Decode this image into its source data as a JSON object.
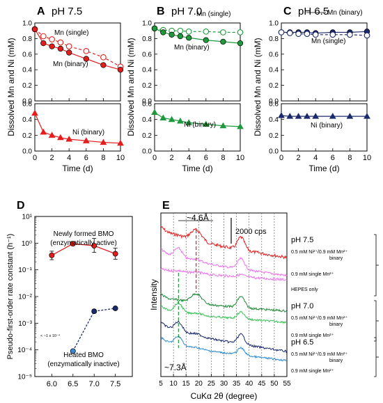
{
  "chart_data": [
    {
      "panel": "A",
      "type": "line",
      "title": "pH 7.5",
      "xlabel": "Time (d)",
      "ylabel": "Dissolved Mn and Ni (mM)",
      "xlim": [
        0,
        10
      ],
      "xticks": [
        "0",
        "2",
        "4",
        "6",
        "8",
        "10"
      ],
      "top": {
        "ylim": [
          0,
          1.0
        ],
        "yticks": [
          "0.0",
          "0.2",
          "0.4",
          "0.6",
          "0.8",
          "1.0"
        ],
        "series": [
          {
            "name": "Mn (single)",
            "marker": "circle-open",
            "line": "dashed",
            "color": "#e41e1e",
            "x": [
              0,
              1,
              2,
              3,
              4,
              6,
              8,
              10
            ],
            "y": [
              0.92,
              0.83,
              0.79,
              0.75,
              0.7,
              0.64,
              0.56,
              0.44
            ]
          },
          {
            "name": "Mn (binary)",
            "marker": "circle-filled",
            "line": "solid",
            "color": "#e41e1e",
            "x": [
              0,
              1,
              2,
              3,
              4,
              6,
              8,
              10
            ],
            "y": [
              0.92,
              0.74,
              0.7,
              0.67,
              0.62,
              0.54,
              0.46,
              0.4
            ]
          }
        ]
      },
      "bottom": {
        "ylim": [
          0,
          0.6
        ],
        "yticks": [
          "0.0",
          "0.2",
          "0.4",
          "0.6"
        ],
        "series": [
          {
            "name": "Ni (binary)",
            "marker": "triangle-filled",
            "line": "solid",
            "color": "#e41e1e",
            "x": [
              0,
              1,
              2,
              3,
              4,
              6,
              8,
              10
            ],
            "y": [
              0.48,
              0.24,
              0.2,
              0.17,
              0.15,
              0.13,
              0.11,
              0.1
            ]
          }
        ]
      }
    },
    {
      "panel": "B",
      "type": "line",
      "title": "pH 7.0",
      "xlabel": "Time (d)",
      "ylabel": "Dissolved Mn and Ni (mM)",
      "xlim": [
        0,
        10
      ],
      "xticks": [
        "0",
        "2",
        "4",
        "6",
        "8",
        "10"
      ],
      "top": {
        "ylim": [
          0,
          1.0
        ],
        "yticks": [
          "0.0",
          "0.2",
          "0.4",
          "0.6",
          "0.8",
          "1.0"
        ],
        "series": [
          {
            "name": "Mn (single)",
            "marker": "circle-open",
            "line": "dashed",
            "color": "#1e9a3c",
            "x": [
              0,
              1,
              2,
              3,
              4,
              6,
              8,
              10
            ],
            "y": [
              0.93,
              0.91,
              0.9,
              0.9,
              0.89,
              0.89,
              0.88,
              0.88
            ]
          },
          {
            "name": "Mn (binary)",
            "marker": "circle-filled",
            "line": "solid",
            "color": "#1e9a3c",
            "x": [
              0,
              1,
              2,
              3,
              4,
              6,
              8,
              10
            ],
            "y": [
              0.93,
              0.88,
              0.85,
              0.83,
              0.81,
              0.78,
              0.76,
              0.74
            ]
          }
        ]
      },
      "bottom": {
        "ylim": [
          0,
          0.6
        ],
        "yticks": [
          "0.0",
          "0.2",
          "0.4",
          "0.6"
        ],
        "series": [
          {
            "name": "Ni (binary)",
            "marker": "triangle-filled",
            "line": "solid",
            "color": "#1e9a3c",
            "x": [
              0,
              1,
              2,
              3,
              4,
              6,
              8,
              10
            ],
            "y": [
              0.49,
              0.42,
              0.4,
              0.38,
              0.36,
              0.34,
              0.32,
              0.31
            ]
          }
        ]
      }
    },
    {
      "panel": "C",
      "type": "line",
      "title": "pH 6.5",
      "xlabel": "Time (d)",
      "ylabel": "Dissolved Mn and Ni (mM)",
      "xlim": [
        0,
        10
      ],
      "xticks": [
        "0",
        "2",
        "4",
        "6",
        "8",
        "10"
      ],
      "top": {
        "ylim": [
          0,
          1.0
        ],
        "yticks": [
          "0.0",
          "0.2",
          "0.4",
          "0.6",
          "0.8",
          "1.0"
        ],
        "series": [
          {
            "name": "Mn (binary)",
            "marker": "circle-filled",
            "line": "solid",
            "color": "#1b2a6b",
            "x": [
              0,
              1,
              2,
              3,
              4,
              6,
              8,
              10
            ],
            "y": [
              0.88,
              0.88,
              0.88,
              0.88,
              0.87,
              0.88,
              0.88,
              0.89
            ]
          },
          {
            "name": "Mn (single)",
            "marker": "circle-open",
            "line": "dashed",
            "color": "#1b2a6b",
            "x": [
              0,
              1,
              2,
              3,
              4,
              6,
              8,
              10
            ],
            "y": [
              0.88,
              0.87,
              0.86,
              0.86,
              0.85,
              0.85,
              0.85,
              0.84
            ]
          }
        ]
      },
      "bottom": {
        "ylim": [
          0,
          0.6
        ],
        "yticks": [
          "0.0",
          "0.2",
          "0.4",
          "0.6"
        ],
        "series": [
          {
            "name": "Ni (binary)",
            "marker": "triangle-filled",
            "line": "solid",
            "color": "#1b2a6b",
            "x": [
              0,
              1,
              2,
              3,
              4,
              6,
              8,
              10
            ],
            "y": [
              0.45,
              0.44,
              0.44,
              0.44,
              0.44,
              0.44,
              0.44,
              0.44
            ]
          }
        ]
      }
    },
    {
      "panel": "D",
      "type": "line",
      "ylabel": "Pseudo-first-order rate constant (h⁻¹)",
      "yscale": "log",
      "ylim": [
        1e-05,
        10
      ],
      "yticks": [
        "10⁻⁵",
        "10⁻⁴",
        "10⁻³",
        "10⁻²",
        "10⁻¹",
        "10⁰",
        "10¹"
      ],
      "xlim": [
        5.6,
        7.9
      ],
      "xticks": [
        "6.0",
        "6.5",
        "7.0",
        "7.5"
      ],
      "annotation": "< ~1 x 10⁻⁴",
      "series": [
        {
          "name": "Newly formed BMO",
          "sublabel": "(enzymatically active)",
          "color": "#e41e1e",
          "line": "solid",
          "x": [
            6.0,
            6.5,
            7.0,
            7.5
          ],
          "y": [
            0.35,
            0.95,
            0.8,
            0.4
          ]
        },
        {
          "name": "Heated BMO",
          "sublabel": "(enzymatically inactive)",
          "color": "#1b2a6b",
          "line": "dashed",
          "x": [
            6.5,
            7.0,
            7.5
          ],
          "y": [
            9e-05,
            0.0028,
            0.0036
          ]
        }
      ]
    },
    {
      "panel": "E",
      "type": "line",
      "xlabel": "CuKα 2θ (degree)",
      "ylabel": "Intensity",
      "xlim": [
        5,
        55
      ],
      "xticks": [
        "5",
        "10",
        "15",
        "20",
        "25",
        "30",
        "35",
        "40",
        "45",
        "50",
        "55"
      ],
      "scalebar": "2000 cps",
      "peak_labels": [
        "~4.6Å",
        "~7.3Å"
      ],
      "group_labels": [
        "pH 7.5",
        "pH 7.0",
        "pH 6.5"
      ],
      "series": [
        {
          "name": "0.5 mM Ni²⁺/0.9 mM Mn²⁺",
          "sub": "binary",
          "color": "#e41e1e"
        },
        {
          "name": "0.9 mM single Mn²⁺",
          "sub": "",
          "color": "#ee74ee"
        },
        {
          "name": "HEPES only",
          "sub": "",
          "color": "#ee74ee"
        },
        {
          "name": "0.5 mM Ni²⁺/0.9 mM Mn²⁺",
          "sub": "binary",
          "color": "#1e8a36"
        },
        {
          "name": "0.9 mM single Mn²⁺",
          "sub": "",
          "color": "#3cc25a"
        },
        {
          "name": "0.5 mM Ni²⁺/0.9 mM Mn²⁺",
          "sub": "binary",
          "color": "#1b2a6b"
        },
        {
          "name": "0.9 mM single Mn²⁺",
          "sub": "",
          "color": "#2a8ad8"
        }
      ]
    }
  ]
}
